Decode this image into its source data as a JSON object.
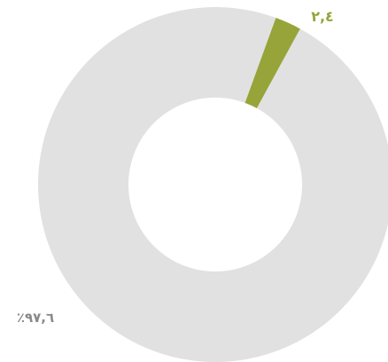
{
  "chart_data": {
    "type": "pie",
    "variant": "donut",
    "slices": [
      {
        "label": "٢,٤",
        "value": 2.4,
        "color": "#97a43a"
      },
      {
        "label": "٪٩٧,٦",
        "value": 97.6,
        "color": "#e1e1e2"
      }
    ],
    "legend": "none",
    "background": "#ffffff"
  }
}
